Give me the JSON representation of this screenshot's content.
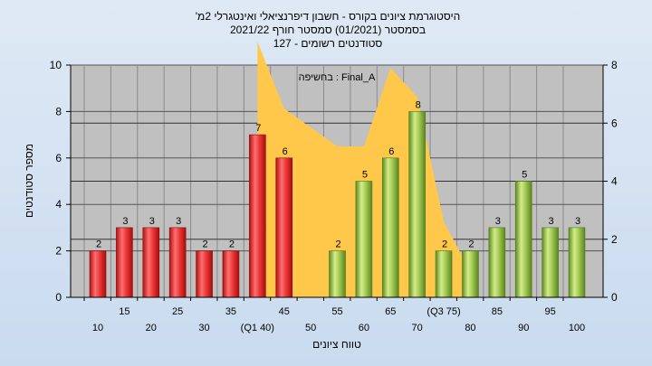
{
  "chart_data": {
    "type": "bar",
    "title_lines": [
      "היסטוגרמת ציונים בקורס - חשבון דיפרנציאלי ואינטגרלי 2מ'",
      "בסמסטר  (01/2021)  סמסטר חורף  2021/22",
      "סטודנטים רשומים - 127"
    ],
    "annotation": "Final_A : בחשיפה",
    "xlabel": "טווח ציונים",
    "ylabel": "מספר סטודנטים",
    "ylim": [
      0,
      10
    ],
    "y_ticks": [
      "0",
      "2",
      "4",
      "6",
      "8",
      "10"
    ],
    "y2lim": [
      0,
      8
    ],
    "y2_ticks": [
      "0",
      "2",
      "4",
      "6",
      "8"
    ],
    "categories": [
      "10",
      "15",
      "20",
      "25",
      "30",
      "35",
      "(Q1 40)",
      "45",
      "50",
      "55",
      "60",
      "65",
      "70",
      "(Q3 75)",
      "80",
      "85",
      "90",
      "95",
      "100"
    ],
    "values": [
      2,
      3,
      3,
      3,
      2,
      2,
      7,
      6,
      0,
      2,
      5,
      6,
      8,
      2,
      2,
      3,
      5,
      3,
      3
    ],
    "value_labels": [
      "2",
      "3",
      "3",
      "3",
      "2",
      "2",
      "7",
      "6",
      "",
      "2",
      "5",
      "6",
      "8",
      "2",
      "2",
      "3",
      "5",
      "3",
      "3"
    ],
    "bar_colors": [
      "red",
      "red",
      "red",
      "red",
      "red",
      "red",
      "red",
      "red",
      "none",
      "green",
      "green",
      "green",
      "green",
      "green",
      "green",
      "green",
      "green",
      "green",
      "green"
    ],
    "area_series": {
      "x_index": [
        6,
        7,
        9,
        10,
        11,
        12,
        13,
        14
      ],
      "values": [
        8.8,
        6.5,
        5.2,
        5.2,
        7.9,
        6.9,
        2.6,
        0.9
      ]
    },
    "grid": true,
    "colors": {
      "red_light": "#ff8a8a",
      "red_dark": "#c81414",
      "green_light": "#d4ec8c",
      "green_dark": "#6e9a28",
      "area": "#ffc84a",
      "plot_bg": "#c0c0c0"
    }
  }
}
